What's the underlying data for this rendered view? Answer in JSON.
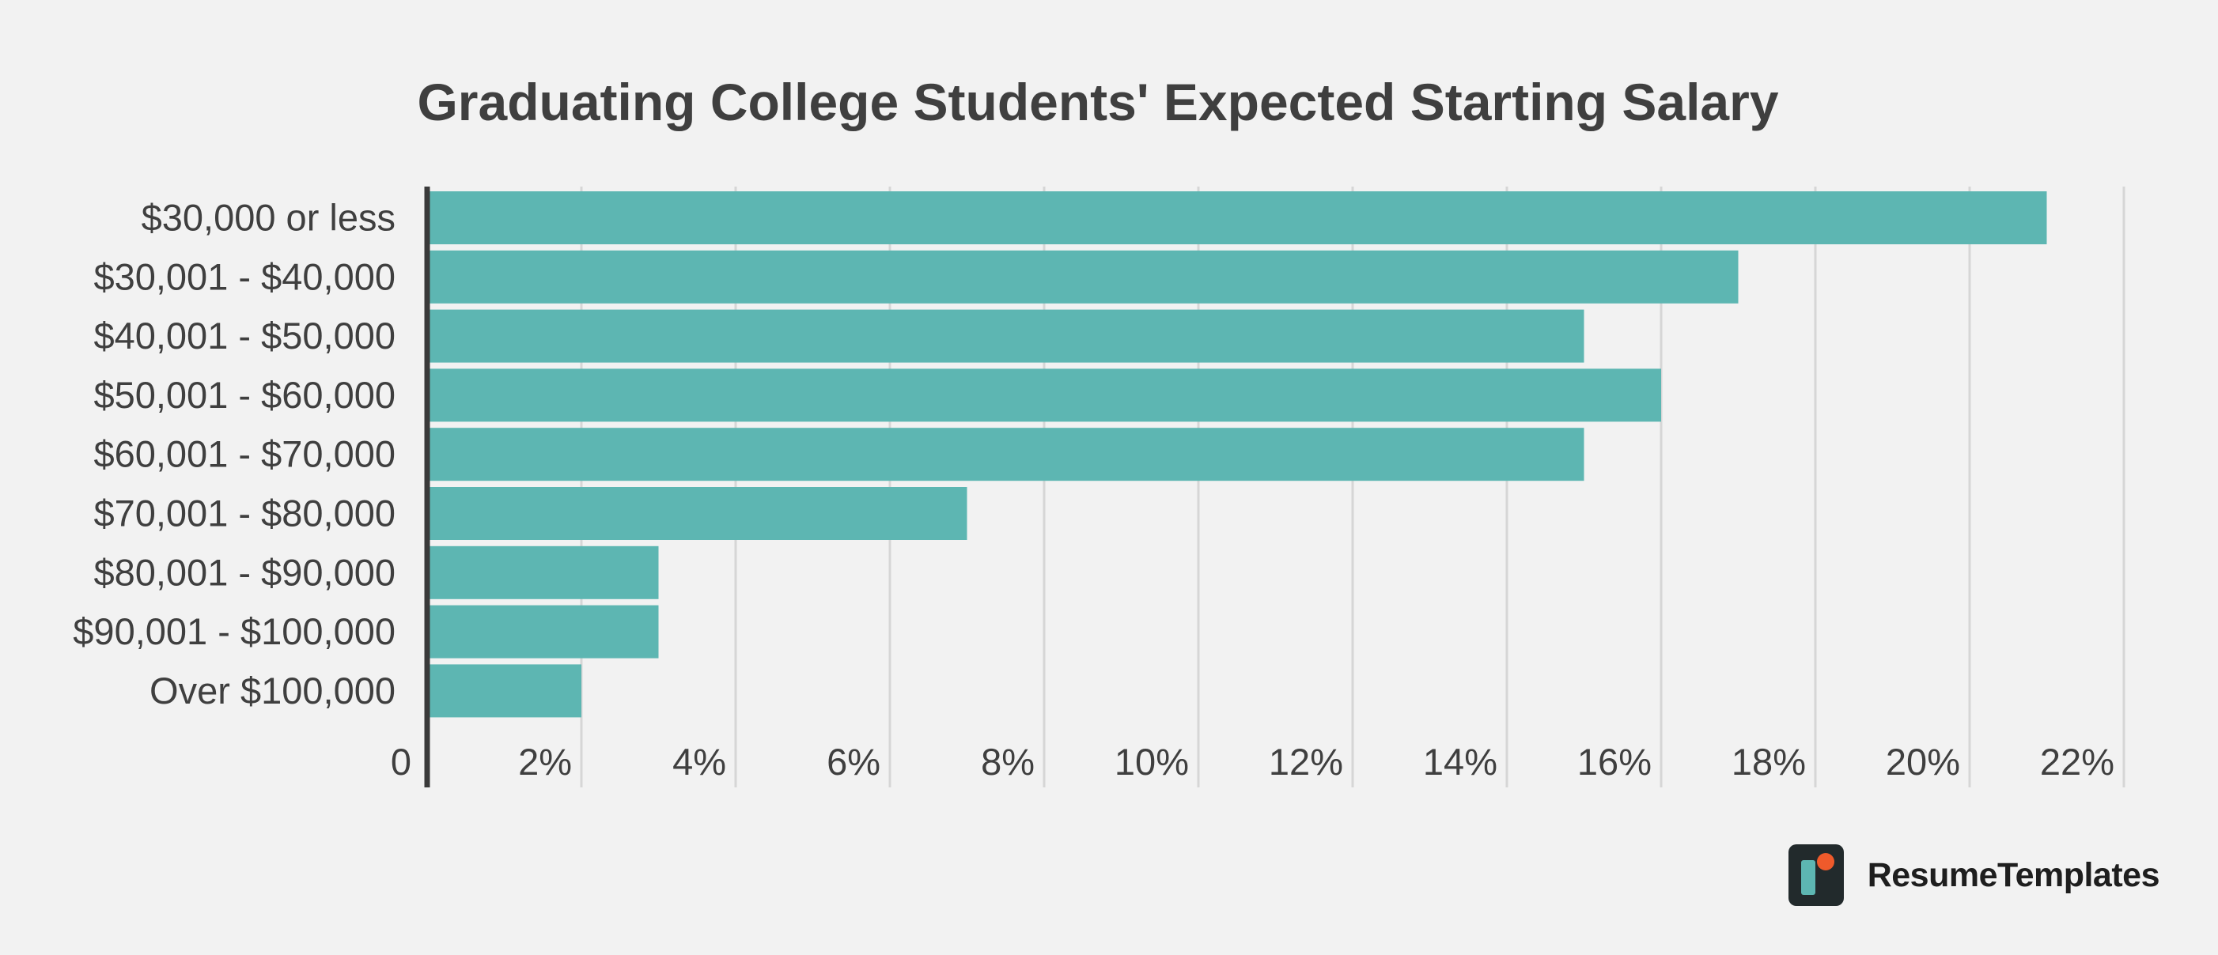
{
  "chart_data": {
    "type": "bar",
    "orientation": "horizontal",
    "title": "Graduating College Students' Expected Starting Salary",
    "categories": [
      "$30,000 or less",
      "$30,001 - $40,000",
      "$40,001 - $50,000",
      "$50,001 - $60,000",
      "$60,001 - $70,000",
      "$70,001 - $80,000",
      "$80,001 - $90,000",
      "$90,001 - $100,000",
      "Over $100,000"
    ],
    "values": [
      21,
      17,
      15,
      16,
      15,
      7,
      3,
      3,
      2
    ],
    "xlim": [
      0,
      22
    ],
    "x_ticks": [
      {
        "value": 0,
        "label": "0"
      },
      {
        "value": 2,
        "label": "2%"
      },
      {
        "value": 4,
        "label": "4%"
      },
      {
        "value": 6,
        "label": "6%"
      },
      {
        "value": 8,
        "label": "8%"
      },
      {
        "value": 10,
        "label": "10%"
      },
      {
        "value": 12,
        "label": "12%"
      },
      {
        "value": 14,
        "label": "14%"
      },
      {
        "value": 16,
        "label": "16%"
      },
      {
        "value": 18,
        "label": "18%"
      },
      {
        "value": 20,
        "label": "20%"
      },
      {
        "value": 22,
        "label": "22%"
      }
    ],
    "grid": true,
    "bar_color": "#5db6b2",
    "axis_color": "#3a3a3a",
    "grid_color": "#d6d6d6"
  },
  "brand": {
    "name": "ResumeTemplates",
    "icon": "resume-templates-logo-icon",
    "icon_colors": {
      "bg": "#222a2c",
      "bar": "#5db6b2",
      "dot": "#ef5a2b"
    }
  }
}
